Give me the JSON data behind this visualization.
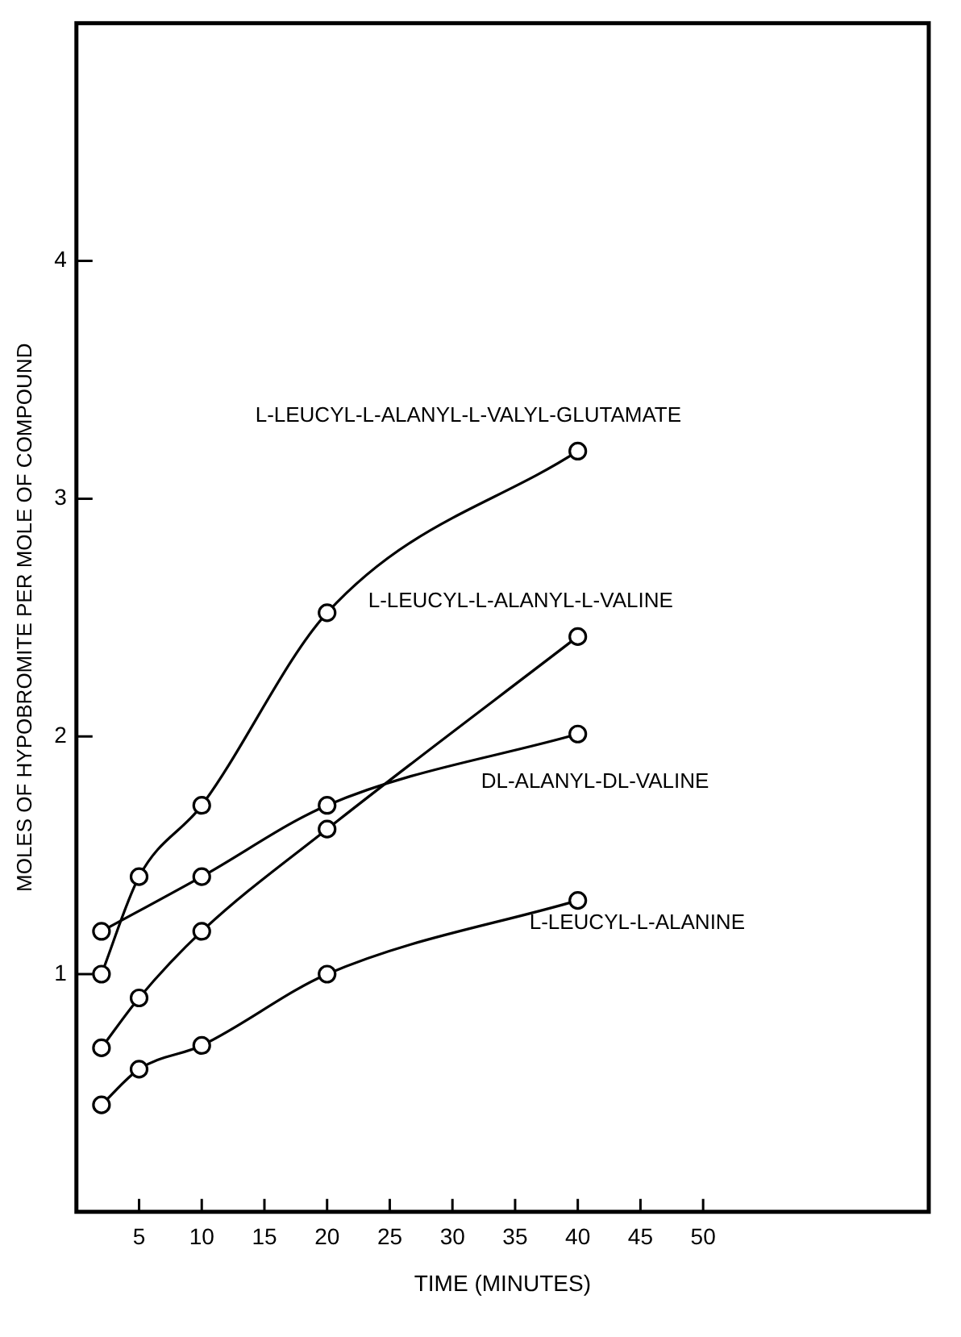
{
  "chart_data": {
    "type": "line",
    "xlabel": "TIME (MINUTES)",
    "ylabel": "MOLES OF HYPOBROMITE PER MOLE OF COMPOUND",
    "x": [
      2,
      5,
      10,
      20,
      40
    ],
    "series": [
      {
        "name": "L-LEUCYL-L-ALANYL-L-VALYL-GLUTAMATE",
        "color": "#000000",
        "values": [
          1.0,
          1.41,
          1.71,
          2.52,
          3.2
        ]
      },
      {
        "name": "L-LEUCYL-L-ALANYL-L-VALINE",
        "color": "#000000",
        "values": [
          0.69,
          0.9,
          1.18,
          1.61,
          2.42
        ]
      },
      {
        "name": "DL-ALANYL-DL-VALINE",
        "color": "#000000",
        "x": [
          2,
          10,
          20,
          40
        ],
        "values": [
          1.18,
          1.41,
          1.71,
          2.01
        ]
      },
      {
        "name": "L-LEUCYL-L-ALANINE",
        "color": "#000000",
        "values": [
          0.45,
          0.6,
          0.7,
          1.0,
          1.31
        ]
      }
    ],
    "xlim": [
      0,
      68
    ],
    "xticks": [
      5,
      10,
      15,
      20,
      25,
      30,
      35,
      40,
      45,
      50
    ],
    "ylim": [
      0,
      5
    ],
    "yticks": [
      1,
      2,
      3,
      4
    ],
    "grid": false,
    "legend": false,
    "marker": "circle",
    "line_style": "solid"
  }
}
